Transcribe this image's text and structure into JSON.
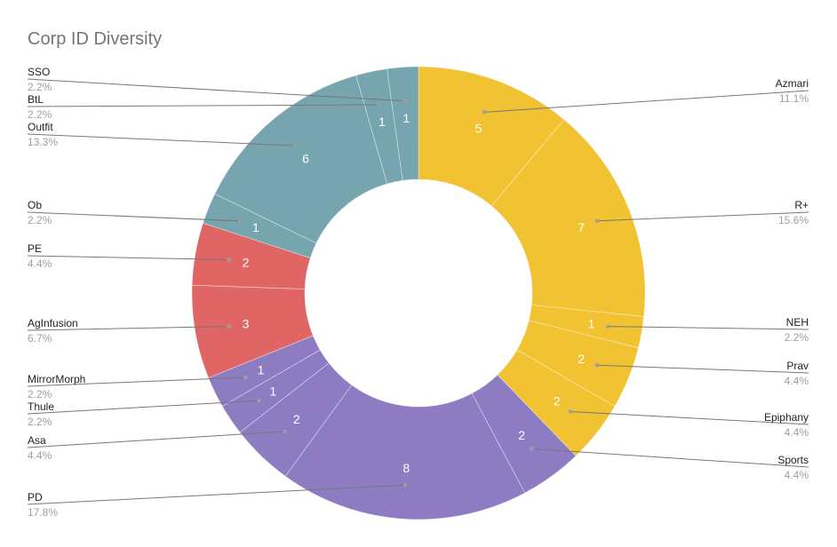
{
  "chart_data": {
    "type": "pie",
    "style": "donut",
    "title": "Corp ID Diversity",
    "slices": [
      {
        "label": "Azmari",
        "value": 5,
        "value_label": "5",
        "percent": "11.1%",
        "color": "#f1c232"
      },
      {
        "label": "R+",
        "value": 7,
        "value_label": "7",
        "percent": "15.6%",
        "color": "#f1c232"
      },
      {
        "label": "NEH",
        "value": 1,
        "value_label": "1",
        "percent": "2.2%",
        "color": "#f1c232"
      },
      {
        "label": "Prav",
        "value": 2,
        "value_label": "2",
        "percent": "4.4%",
        "color": "#f1c232"
      },
      {
        "label": "Epiphany",
        "value": 2,
        "value_label": "2",
        "percent": "4.4%",
        "color": "#f1c232"
      },
      {
        "label": "Sports",
        "value": 2,
        "value_label": "2",
        "percent": "4.4%",
        "color": "#8e7cc3"
      },
      {
        "label": "PD",
        "value": 8,
        "value_label": "8",
        "percent": "17.8%",
        "color": "#8e7cc3"
      },
      {
        "label": "Asa",
        "value": 2,
        "value_label": "2",
        "percent": "4.4%",
        "color": "#8e7cc3"
      },
      {
        "label": "Thule",
        "value": 1,
        "value_label": "1",
        "percent": "2.2%",
        "color": "#8e7cc3"
      },
      {
        "label": "MirrorMorph",
        "value": 1,
        "value_label": "1",
        "percent": "2.2%",
        "color": "#8e7cc3"
      },
      {
        "label": "AgInfusion",
        "value": 3,
        "value_label": "3",
        "percent": "6.7%",
        "color": "#e06666"
      },
      {
        "label": "PE",
        "value": 2,
        "value_label": "2",
        "percent": "4.4%",
        "color": "#e06666"
      },
      {
        "label": "Ob",
        "value": 1,
        "value_label": "1",
        "percent": "2.2%",
        "color": "#76a5af"
      },
      {
        "label": "Outfit",
        "value": 6,
        "value_label": "6",
        "percent": "13.3%",
        "color": "#76a5af"
      },
      {
        "label": "BtL",
        "value": 1,
        "value_label": "1",
        "percent": "2.2%",
        "color": "#76a5af"
      },
      {
        "label": "SSO",
        "value": 1,
        "value_label": "1",
        "percent": "2.2%",
        "color": "#76a5af"
      }
    ],
    "legend": "none",
    "label_placement": "leader-lines"
  }
}
